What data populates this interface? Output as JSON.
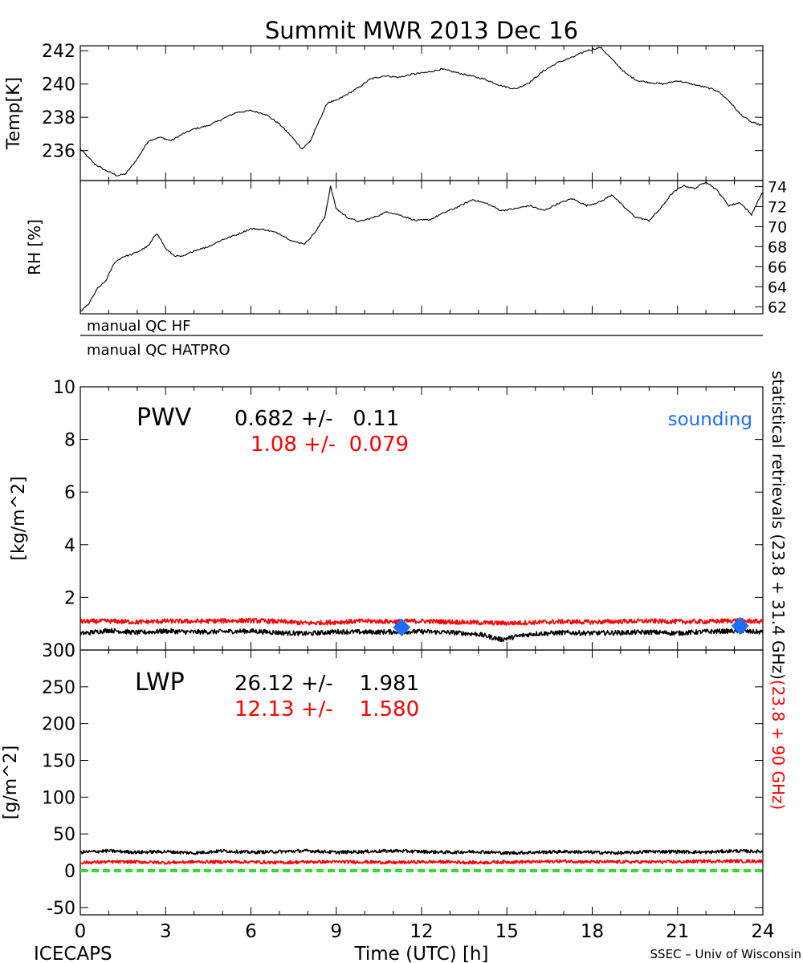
{
  "title": "Summit MWR 2013 Dec 16",
  "footer": {
    "left": "ICECAPS",
    "right": "SSEC – Univ of Wisconsin"
  },
  "colors": {
    "black_series": "#000000",
    "red_series": "#ff0000",
    "sounding": "#1a6fff",
    "zero_line": "#33dd33",
    "background": "#ffffff"
  },
  "side_label": {
    "black_part": "statistical retrievals (23.8 + 31.4 GHz)",
    "red_part": "(23.8 + 90 GHz)"
  },
  "qc": {
    "hf_label": "manual QC HF",
    "hatpro_label": "manual QC HATPRO"
  },
  "pwv_stats": {
    "name": "PWV",
    "black": "0.682 +/-   0.11",
    "red": "1.08 +/-  0.079",
    "sounding_label": "sounding"
  },
  "lwp_stats": {
    "name": "LWP",
    "black": "26.12 +/-    1.981",
    "red": "12.13 +/-    1.580"
  },
  "chart_data": [
    {
      "type": "line",
      "panel": "temperature",
      "ylabel": "Temp[K]",
      "xlim": [
        0,
        24
      ],
      "ylim": [
        234.2,
        242.3
      ],
      "yticks": [
        236,
        238,
        240,
        242
      ],
      "series": [
        {
          "color": "#000000",
          "x": [
            0,
            0.5,
            0.9,
            1.3,
            1.6,
            2.0,
            2.4,
            2.8,
            3.2,
            3.6,
            4.0,
            4.5,
            5.0,
            5.5,
            6.0,
            6.5,
            7.0,
            7.4,
            7.8,
            8.1,
            8.4,
            8.7,
            9.0,
            9.4,
            9.8,
            10.2,
            10.7,
            11.2,
            11.7,
            12.2,
            12.7,
            13.2,
            13.7,
            14.2,
            14.8,
            15.3,
            15.8,
            16.3,
            16.8,
            17.3,
            17.8,
            18.3,
            18.8,
            19.2,
            19.6,
            20.0,
            20.5,
            21.0,
            21.5,
            22.0,
            22.4,
            22.8,
            23.2,
            23.6,
            24.0
          ],
          "y": [
            236.1,
            235.2,
            234.8,
            234.5,
            234.6,
            235.5,
            236.6,
            236.8,
            236.6,
            237.0,
            237.3,
            237.5,
            237.9,
            238.3,
            238.4,
            238.2,
            237.6,
            236.9,
            236.1,
            236.6,
            237.8,
            238.9,
            239.0,
            239.4,
            239.8,
            240.3,
            240.5,
            240.4,
            240.6,
            240.7,
            240.9,
            240.7,
            240.5,
            240.3,
            239.9,
            239.7,
            240.1,
            240.8,
            241.3,
            241.6,
            242.0,
            242.2,
            241.3,
            240.6,
            240.2,
            240.1,
            240.0,
            240.2,
            240.0,
            239.8,
            239.6,
            239.0,
            238.2,
            237.7,
            237.5
          ]
        }
      ]
    },
    {
      "type": "line",
      "panel": "relative-humidity",
      "ylabel": "RH [%]",
      "xlim": [
        0,
        24
      ],
      "ylim": [
        61.3,
        74.6
      ],
      "yticks": [
        62,
        64,
        66,
        68,
        70,
        72,
        74
      ],
      "series": [
        {
          "color": "#000000",
          "x": [
            0,
            0.3,
            0.6,
            0.9,
            1.2,
            1.5,
            1.8,
            2.1,
            2.4,
            2.7,
            3.0,
            3.3,
            3.6,
            4.0,
            4.5,
            5.0,
            5.5,
            6.0,
            6.5,
            7.0,
            7.5,
            7.9,
            8.3,
            8.6,
            8.8,
            9.0,
            9.4,
            9.8,
            10.3,
            10.8,
            11.3,
            11.8,
            12.3,
            12.8,
            13.3,
            13.8,
            14.3,
            14.8,
            15.3,
            15.8,
            16.3,
            16.8,
            17.3,
            17.8,
            18.3,
            18.7,
            19.1,
            19.5,
            20.0,
            20.4,
            20.8,
            21.2,
            21.6,
            22.0,
            22.4,
            22.8,
            23.2,
            23.6,
            24.0
          ],
          "y": [
            61.5,
            62.3,
            63.8,
            64.6,
            66.4,
            67.0,
            67.2,
            67.6,
            68.1,
            69.4,
            67.8,
            67.1,
            67.0,
            67.6,
            68.0,
            68.7,
            69.2,
            69.8,
            69.7,
            69.3,
            68.5,
            68.3,
            69.6,
            71.0,
            74.0,
            71.8,
            70.9,
            70.5,
            70.9,
            71.5,
            71.1,
            70.6,
            70.7,
            71.4,
            72.0,
            72.7,
            72.3,
            71.6,
            71.8,
            72.1,
            71.6,
            72.3,
            72.8,
            72.1,
            72.5,
            73.2,
            72.0,
            71.0,
            70.6,
            71.8,
            73.3,
            74.1,
            73.8,
            74.5,
            73.6,
            72.1,
            72.4,
            71.2,
            73.5
          ]
        }
      ]
    },
    {
      "type": "line",
      "panel": "pwv",
      "ylabel": "[kg/m^2]",
      "xlim": [
        0,
        24
      ],
      "ylim": [
        0,
        10
      ],
      "yticks": [
        0,
        2,
        4,
        6,
        8,
        10
      ],
      "series": [
        {
          "color": "#000000",
          "x": [
            0,
            1,
            2,
            3,
            4,
            5,
            6,
            7,
            8,
            9,
            10,
            11,
            12,
            13,
            14,
            14.8,
            15.5,
            16,
            17,
            18,
            19,
            20,
            21,
            22,
            23,
            24
          ],
          "y": [
            0.62,
            0.75,
            0.66,
            0.72,
            0.68,
            0.7,
            0.72,
            0.66,
            0.62,
            0.7,
            0.68,
            0.69,
            0.7,
            0.67,
            0.6,
            0.4,
            0.55,
            0.62,
            0.66,
            0.64,
            0.66,
            0.68,
            0.64,
            0.7,
            0.72,
            0.68
          ]
        },
        {
          "color": "#ff0000",
          "x": [
            0,
            1,
            2,
            3,
            4,
            5,
            6,
            7,
            8,
            9,
            10,
            11,
            12,
            13,
            14,
            15,
            16,
            17,
            18,
            19,
            20,
            21,
            22,
            23,
            24
          ],
          "y": [
            1.08,
            1.1,
            1.06,
            1.1,
            1.09,
            1.11,
            1.12,
            1.08,
            1.02,
            1.06,
            1.1,
            1.08,
            1.1,
            1.07,
            1.04,
            1.02,
            1.05,
            1.08,
            1.06,
            1.09,
            1.1,
            1.08,
            1.08,
            1.12,
            1.08
          ]
        }
      ],
      "soundings": [
        {
          "x": 11.3,
          "y": 0.86
        },
        {
          "x": 23.2,
          "y": 0.92
        }
      ]
    },
    {
      "type": "line",
      "panel": "lwp",
      "ylabel": "[g/m^2]",
      "xlabel": "Time (UTC) [h]",
      "xlim": [
        0,
        24
      ],
      "xticks": [
        0,
        3,
        6,
        9,
        12,
        15,
        18,
        21,
        24
      ],
      "ylim": [
        -60,
        300
      ],
      "yticks": [
        -50,
        0,
        50,
        100,
        150,
        200,
        250,
        300
      ],
      "series": [
        {
          "color": "#000000",
          "x": [
            0,
            1,
            2,
            3,
            4,
            5,
            6,
            7,
            8,
            9,
            10,
            11,
            12,
            13,
            14,
            15,
            16,
            17,
            18,
            19,
            20,
            21,
            22,
            23,
            24
          ],
          "y": [
            25,
            27,
            25,
            26,
            24,
            27,
            25,
            26,
            27,
            25,
            26,
            27,
            26,
            25,
            26,
            24,
            25,
            26,
            25,
            24,
            26,
            26,
            25,
            27,
            26
          ]
        },
        {
          "color": "#ff0000",
          "x": [
            0,
            1,
            2,
            3,
            4,
            5,
            6,
            7,
            8,
            9,
            10,
            11,
            12,
            13,
            14,
            15,
            16,
            17,
            18,
            19,
            20,
            21,
            22,
            23,
            24
          ],
          "y": [
            11,
            12,
            12,
            11,
            12,
            12,
            12,
            11,
            12,
            12,
            12,
            11,
            12,
            12,
            11,
            12,
            12,
            13,
            12,
            12,
            12,
            12,
            13,
            13,
            13
          ]
        },
        {
          "color": "#33dd33",
          "dashed": true,
          "x": [
            0,
            24
          ],
          "y": [
            0,
            0
          ]
        }
      ]
    }
  ]
}
